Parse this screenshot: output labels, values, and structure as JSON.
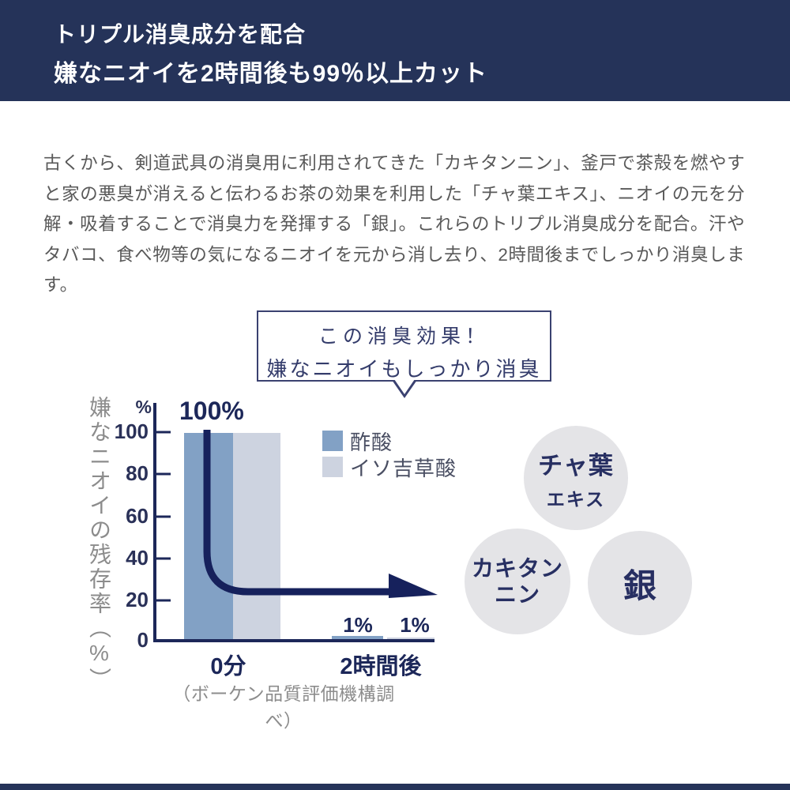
{
  "header": {
    "line1": "トリプル消臭成分を配合",
    "line2": "嫌なニオイを2時間後も99％以上カット"
  },
  "body_text": "古くから、剣道武具の消臭用に利用されてきた「カキタンニン」、釜戸で茶殻を燃やすと家の悪臭が消えると伝わるお茶の効果を利用した「チャ葉エキス」、ニオイの元を分解・吸着することで消臭力を発揮する「銀」。これらのトリプル消臭成分を配合。汗やタバコ、食べ物等の気になるニオイを元から消し去り、2時間後までしっかり消臭します。",
  "speech_bubble": {
    "line1": "この消臭効果！",
    "line2": "嫌なニオイもしっかり消臭"
  },
  "chart_data": {
    "type": "bar",
    "categories": [
      "0分",
      "2時間後"
    ],
    "series": [
      {
        "name": "酢酸",
        "color": "#82a1c5",
        "values": [
          100,
          1
        ]
      },
      {
        "name": "イソ吉草酸",
        "color": "#cdd3e0",
        "values": [
          100,
          1
        ]
      }
    ],
    "ylabel": "嫌なニオイの残存率（%）",
    "yunit": "%",
    "yticks": [
      "100",
      "80",
      "60",
      "40",
      "20",
      "0"
    ],
    "ylim": [
      0,
      100
    ],
    "value_labels": [
      "100%",
      "1%",
      "1%"
    ],
    "legend_position": "inside-top-right",
    "grid": false,
    "annotation_arrow": "from 100% at 0分 down and right to ~25% level, pointing right",
    "source_note": "（ボーケン品質評価機構調べ）",
    "accent_color": "#1c2759"
  },
  "ingredients": [
    {
      "line1": "チャ葉",
      "line2": "エキス"
    },
    {
      "line1": "カキタン",
      "line2": "ニン"
    },
    {
      "line1": "銀",
      "line2": ""
    }
  ]
}
